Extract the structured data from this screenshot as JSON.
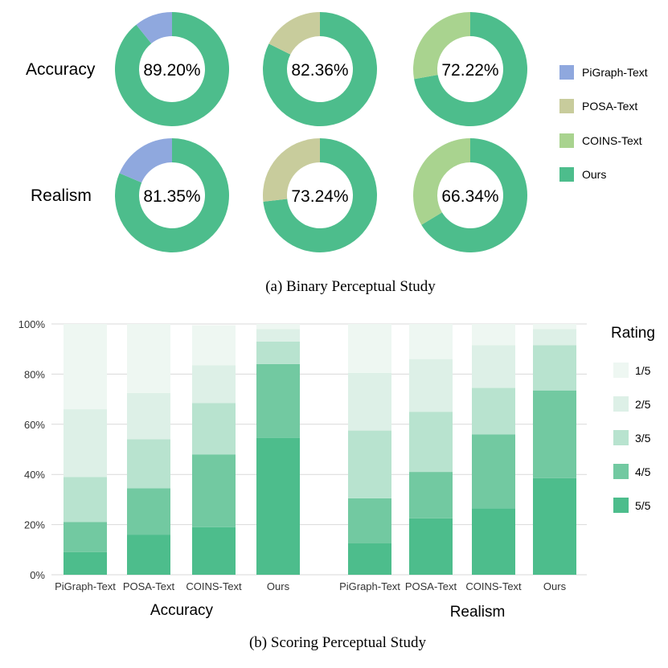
{
  "donut_panel": {
    "caption": "(a) Binary Perceptual Study",
    "row_labels": [
      "Accuracy",
      "Realism"
    ],
    "legend": [
      {
        "label": "PiGraph-Text",
        "color": "#8FA8DE"
      },
      {
        "label": "POSA-Text",
        "color": "#C8CC9C"
      },
      {
        "label": "COINS-Text",
        "color": "#A9D38F"
      },
      {
        "label": "Ours",
        "color": "#4DBD8C"
      }
    ]
  },
  "bar_panel": {
    "caption": "(b) Scoring Perceptual Study",
    "legend_title": "Rating",
    "group_labels": [
      "Accuracy",
      "Realism"
    ]
  },
  "chart_data": [
    {
      "type": "pie",
      "variant": "donut",
      "title": "Binary Perceptual Study",
      "rows": [
        "Accuracy",
        "Realism"
      ],
      "comparisons": [
        "PiGraph-Text",
        "POSA-Text",
        "COINS-Text"
      ],
      "ours_label": "Ours",
      "ours_percent": [
        [
          89.2,
          82.36,
          72.22
        ],
        [
          81.35,
          73.24,
          66.34
        ]
      ],
      "labels_text": [
        [
          "89.20%",
          "82.36%",
          "72.22%"
        ],
        [
          "81.35%",
          "73.24%",
          "66.34%"
        ]
      ]
    },
    {
      "type": "bar",
      "stacked": true,
      "title": "Scoring Perceptual Study",
      "groups": [
        {
          "name": "Accuracy",
          "categories": [
            "PiGraph-Text",
            "POSA-Text",
            "COINS-Text",
            "Ours"
          ]
        },
        {
          "name": "Realism",
          "categories": [
            "PiGraph-Text",
            "POSA-Text",
            "COINS-Text",
            "Ours"
          ]
        }
      ],
      "series": [
        {
          "name": "5/5",
          "color": "#4DBD8C",
          "values": [
            9,
            16,
            19,
            54.5,
            12.5,
            22.5,
            26.5,
            38.5
          ]
        },
        {
          "name": "4/5",
          "color": "#72C9A1",
          "values": [
            12,
            18.5,
            29,
            29.5,
            18,
            18.5,
            29.5,
            35
          ]
        },
        {
          "name": "3/5",
          "color": "#B8E3CF",
          "values": [
            18,
            19.5,
            20.5,
            9,
            27,
            24,
            18.5,
            18
          ]
        },
        {
          "name": "2/5",
          "color": "#DDF0E7",
          "values": [
            27,
            18.5,
            15,
            5,
            23,
            21,
            17,
            6.5
          ]
        },
        {
          "name": "1/5",
          "color": "#EEF7F2",
          "values": [
            34,
            27.5,
            16,
            2,
            19.5,
            14,
            8.5,
            2
          ]
        }
      ],
      "legend_order": [
        "1/5",
        "2/5",
        "3/5",
        "4/5",
        "5/5"
      ],
      "ylim": [
        0,
        100
      ],
      "yticks": [
        "0%",
        "20%",
        "40%",
        "60%",
        "80%",
        "100%"
      ],
      "ylabel": "",
      "xlabel": ""
    }
  ]
}
